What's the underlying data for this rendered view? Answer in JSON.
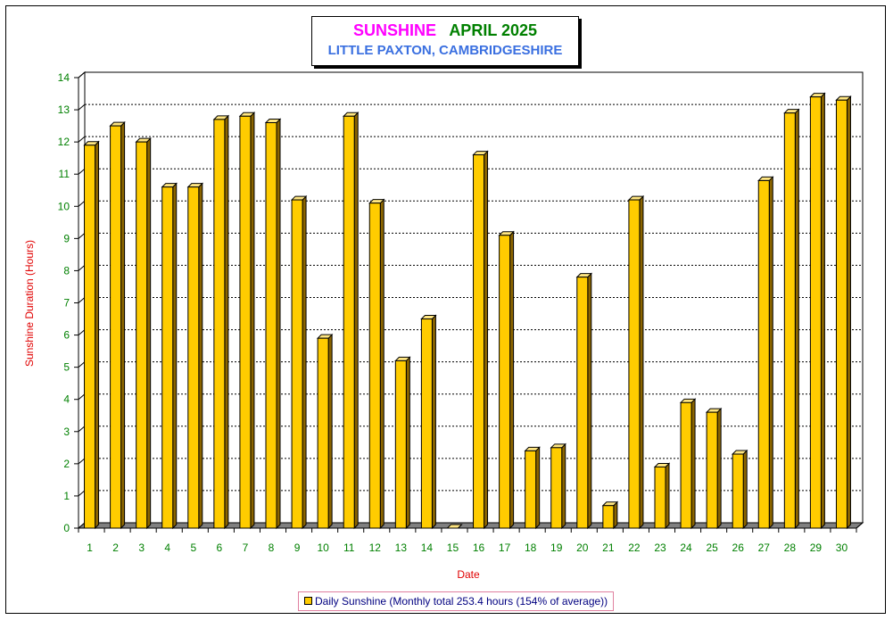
{
  "title": {
    "part1": "SUNSHINE",
    "part2": "APRIL 2025",
    "subtitle": "LITTLE PAXTON, CAMBRIDGESHIRE"
  },
  "colors": {
    "title_sunshine": "#ff00ff",
    "title_month": "#008000",
    "subtitle": "#3a6fe0",
    "bar_face": "#ffcc00",
    "bar_side": "#8a6400",
    "bar_top": "#ffe680",
    "axis_label": "#e00000",
    "tick_label": "#008000",
    "legend_text": "#000080"
  },
  "chart_data": {
    "type": "bar",
    "xlabel": "Date",
    "ylabel": "Sunshine Duration (Hours)",
    "ylim": [
      0,
      14
    ],
    "yticks": [
      0,
      1,
      2,
      3,
      4,
      5,
      6,
      7,
      8,
      9,
      10,
      11,
      12,
      13,
      14
    ],
    "grid": "horizontal-dotted",
    "legend_position": "bottom-center",
    "categories": [
      "1",
      "2",
      "3",
      "4",
      "5",
      "6",
      "7",
      "8",
      "9",
      "10",
      "11",
      "12",
      "13",
      "14",
      "15",
      "16",
      "17",
      "18",
      "19",
      "20",
      "21",
      "22",
      "23",
      "24",
      "25",
      "26",
      "27",
      "28",
      "29",
      "30"
    ],
    "series": [
      {
        "name": "Daily Sunshine (Monthly total 253.4 hours (154% of average))",
        "values": [
          11.9,
          12.5,
          12.0,
          10.6,
          10.6,
          12.7,
          12.8,
          12.6,
          10.2,
          5.9,
          12.8,
          10.1,
          5.2,
          6.5,
          0.0,
          11.6,
          9.1,
          2.4,
          2.5,
          7.8,
          0.7,
          10.2,
          1.9,
          3.9,
          3.6,
          2.3,
          10.8,
          12.9,
          13.4,
          13.3
        ]
      }
    ]
  }
}
